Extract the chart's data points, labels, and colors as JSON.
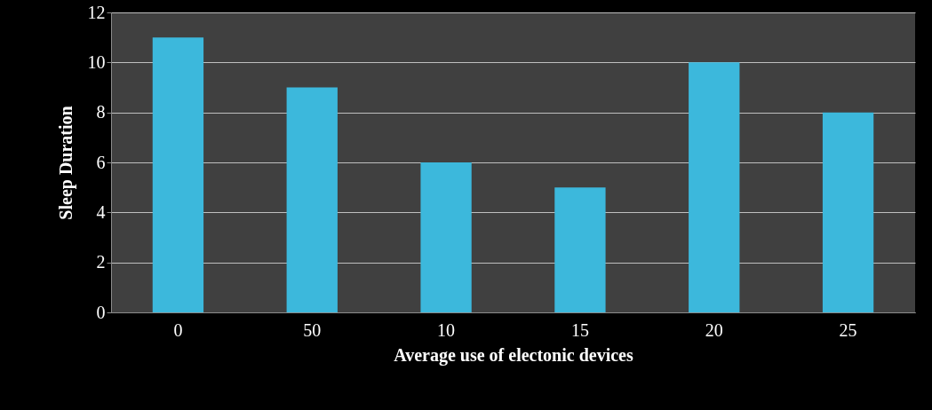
{
  "chart_data": {
    "type": "bar",
    "xlabel": "Average use of electonic devices",
    "ylabel": "Sleep  Duration",
    "categories": [
      "0",
      "50",
      "10",
      "15",
      "20",
      "25"
    ],
    "values": [
      11,
      9,
      6,
      5,
      10,
      8
    ],
    "color": "#3cb8dc",
    "ylim": [
      0,
      12
    ],
    "yticks": [
      0,
      2,
      4,
      6,
      8,
      10,
      12
    ],
    "grid": "y",
    "legend": false
  }
}
